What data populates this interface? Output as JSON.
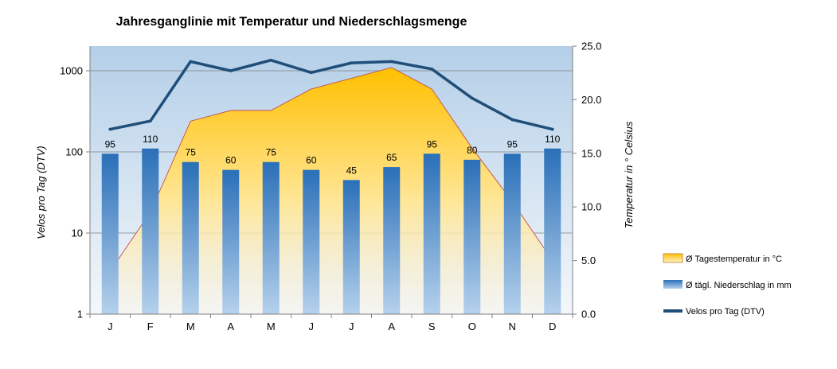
{
  "chart_data": {
    "type": "bar",
    "title": "Jahresganglinie mit Temperatur und Niederschlagsmenge",
    "categories": [
      "J",
      "F",
      "M",
      "A",
      "M",
      "J",
      "J",
      "A",
      "S",
      "O",
      "N",
      "D"
    ],
    "y_left": {
      "label": "Velos pro Tag (DTV)",
      "scale": "log",
      "range": [
        1,
        2000
      ],
      "ticks": [
        "1",
        "10",
        "100",
        "1000"
      ]
    },
    "y_right": {
      "label": "Temperatur  in ° Celsius",
      "range": [
        0,
        25
      ],
      "ticks": [
        "0.0",
        "5.0",
        "10.0",
        "15.0",
        "20.0",
        "25.0"
      ]
    },
    "series": [
      {
        "name": "Ø Tagestemperatur in °C",
        "type": "area",
        "axis": "right",
        "color": "#ffc000",
        "values": [
          4.0,
          9.5,
          18.0,
          19.0,
          19.0,
          21.0,
          22.0,
          23.0,
          21.0,
          15.5,
          10.5,
          5.0
        ]
      },
      {
        "name": "Ø tägl. Niederschlag in mm",
        "type": "bar",
        "axis": "left",
        "color": "#2e75c0",
        "values": [
          95,
          110,
          75,
          60,
          75,
          60,
          45,
          65,
          95,
          80,
          95,
          110
        ],
        "labels": [
          "95",
          "110",
          "75",
          "60",
          "75",
          "60",
          "45",
          "65",
          "95",
          "80",
          "95",
          "110"
        ]
      },
      {
        "name": "Velos pro Tag (DTV)",
        "type": "line",
        "axis": "left",
        "color": "#1f4e79",
        "values": [
          190,
          240,
          1300,
          1000,
          1350,
          950,
          1250,
          1300,
          1050,
          460,
          250,
          190
        ]
      }
    ],
    "grid": true,
    "legend_position": "right"
  }
}
